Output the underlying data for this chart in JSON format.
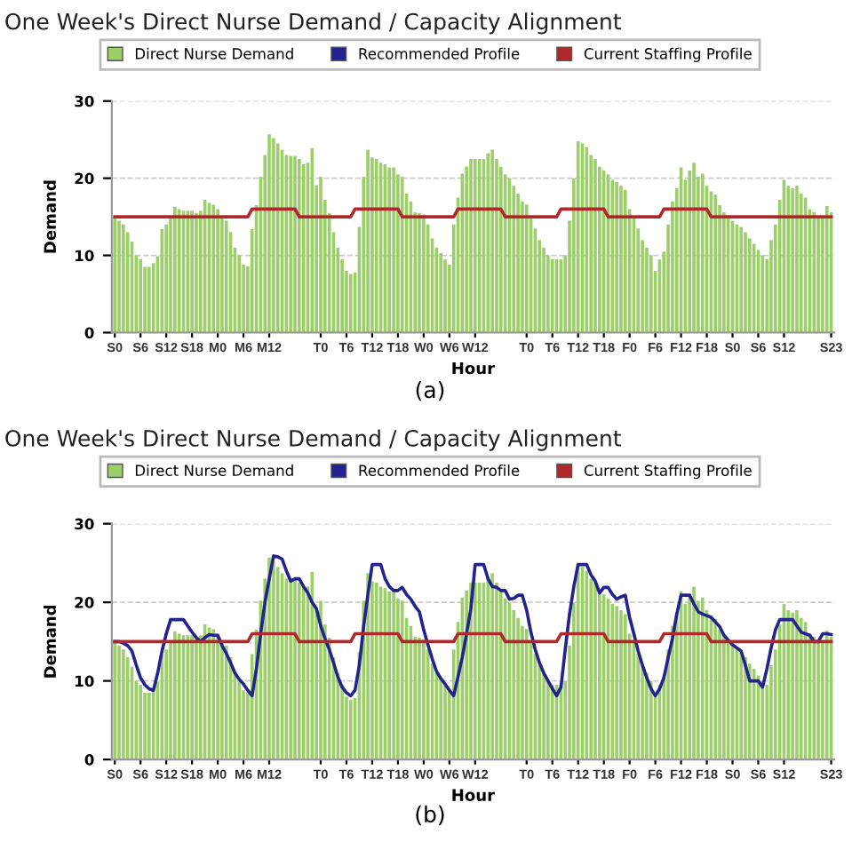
{
  "chart_data": [
    {
      "type": "bar",
      "title": "One Week's Direct Nurse Demand / Capacity Alignment",
      "xlabel": "Hour",
      "ylabel": "Demand",
      "annotations": [
        "(a)"
      ],
      "categories": [
        "S0",
        null,
        null,
        null,
        null,
        null,
        "S6",
        null,
        null,
        null,
        null,
        null,
        "S12",
        null,
        null,
        null,
        null,
        null,
        "S18",
        null,
        null,
        null,
        null,
        null,
        "M0",
        null,
        null,
        null,
        null,
        null,
        "M6",
        null,
        null,
        null,
        null,
        null,
        "M12",
        null,
        null,
        null,
        null,
        null,
        null,
        null,
        null,
        null,
        null,
        null,
        "T0",
        null,
        null,
        null,
        null,
        null,
        "T6",
        null,
        null,
        null,
        null,
        null,
        "T12",
        null,
        null,
        null,
        null,
        null,
        "T18",
        null,
        null,
        null,
        null,
        null,
        "W0",
        null,
        null,
        null,
        null,
        null,
        "W6",
        null,
        null,
        null,
        null,
        null,
        "W12",
        null,
        null,
        null,
        null,
        null,
        null,
        null,
        null,
        null,
        null,
        null,
        "T0",
        null,
        null,
        null,
        null,
        null,
        "T6",
        null,
        null,
        null,
        null,
        null,
        "T12",
        null,
        null,
        null,
        null,
        null,
        "T18",
        null,
        null,
        null,
        null,
        null,
        "F0",
        null,
        null,
        null,
        null,
        null,
        "F6",
        null,
        null,
        null,
        null,
        null,
        "F12",
        null,
        null,
        null,
        null,
        null,
        "F18",
        null,
        null,
        null,
        null,
        null,
        "S0",
        null,
        null,
        null,
        null,
        null,
        "S6",
        null,
        null,
        null,
        null,
        null,
        "S12",
        null,
        null,
        null,
        null,
        null,
        null,
        null,
        null,
        null,
        null,
        "S23"
      ],
      "series": [
        {
          "name": "Direct Nurse Demand",
          "color": "#9ccf6a",
          "values": [
            15,
            14.5,
            14,
            13,
            11.8,
            10,
            9.5,
            8.5,
            8.5,
            9,
            9.9,
            13.4,
            14,
            15,
            16.3,
            16,
            15.8,
            15.8,
            15.8,
            15.5,
            15.8,
            17.2,
            16.8,
            16.6,
            16,
            15,
            14.5,
            13,
            11,
            10,
            8.8,
            8.6,
            13.4,
            16.5,
            20.2,
            23,
            25.7,
            25.2,
            24.5,
            23.7,
            23,
            22.9,
            22.9,
            22.5,
            21.8,
            22,
            23.9,
            19.1,
            20.2,
            17.2,
            15.5,
            13,
            11,
            9.5,
            8,
            7.6,
            7.8,
            13.7,
            20.2,
            23.7,
            22.7,
            22.5,
            22,
            21.8,
            21.4,
            21.4,
            20.5,
            20.2,
            18,
            17,
            15.6,
            15.5,
            15.3,
            14,
            12.2,
            11,
            10.3,
            9.5,
            8.8,
            14,
            17.5,
            20.6,
            21.5,
            22.5,
            22.5,
            22.5,
            22.5,
            23.2,
            23.7,
            22.5,
            21.5,
            20.5,
            20,
            19,
            18,
            17,
            16.6,
            15,
            13.5,
            12,
            11,
            10,
            9.5,
            9.5,
            9.5,
            10,
            14.5,
            20,
            24.8,
            24.5,
            24,
            23,
            22.5,
            21.5,
            21,
            20.5,
            19.8,
            19.5,
            19,
            18.5,
            16,
            15,
            13.5,
            12,
            11,
            10,
            8,
            9.5,
            10.5,
            14,
            17,
            18.7,
            21.4,
            19.8,
            21,
            22,
            20.2,
            20.6,
            19,
            18.3,
            17.9,
            16.5,
            15.6,
            15,
            14.5,
            14,
            13.7,
            13,
            12.2,
            11.5,
            10.7,
            10,
            9.5,
            12,
            14,
            17.2,
            19.8,
            19,
            18.7,
            19,
            18,
            17.5,
            16,
            15.6,
            15,
            14.9,
            16.4,
            15.6
          ]
        },
        {
          "name": "Recommended Profile",
          "type": "line",
          "color": "#23238f",
          "values": [
            null,
            null,
            null,
            null,
            null,
            null,
            null,
            null,
            null,
            null,
            null,
            null,
            null,
            null,
            null,
            null,
            null,
            null,
            null,
            null,
            null,
            null,
            null,
            null,
            null,
            null,
            null,
            null,
            null,
            null,
            null,
            null,
            null,
            null,
            null,
            null,
            null,
            null,
            null,
            null,
            null,
            null,
            null,
            null,
            null,
            null,
            null,
            null,
            null,
            null,
            null,
            null,
            null,
            null,
            null,
            null,
            null,
            null,
            null,
            null,
            null,
            null,
            null,
            null,
            null,
            null,
            null,
            null,
            null,
            null,
            null,
            null,
            null,
            null,
            null,
            null,
            null,
            null,
            null,
            null,
            null,
            null,
            null,
            null,
            null,
            null,
            null,
            null,
            null,
            null,
            null,
            null,
            null,
            null,
            null,
            null,
            null,
            null,
            null,
            null,
            null,
            null,
            null,
            null,
            null,
            null,
            null,
            null,
            null,
            null,
            null,
            null,
            null,
            null,
            null,
            null,
            null,
            null,
            null,
            null,
            null,
            null,
            null,
            null,
            null,
            null,
            null,
            null,
            null,
            null,
            null,
            null,
            null,
            null,
            null,
            null,
            null,
            null,
            null,
            null,
            null,
            null,
            null,
            null,
            null,
            null,
            null,
            null,
            null,
            null,
            null,
            null,
            null,
            null,
            null,
            null,
            null,
            null,
            null,
            null,
            null,
            null,
            null,
            null,
            null,
            null,
            null,
            null
          ]
        },
        {
          "name": "Current Staffing Profile",
          "type": "line",
          "color": "#b0282a",
          "values": [
            15,
            15,
            15,
            15,
            15,
            15,
            15,
            15,
            15,
            15,
            15,
            15,
            15,
            15,
            15,
            15,
            15,
            15,
            15,
            15,
            15,
            15,
            15,
            15,
            15,
            15,
            15,
            15,
            15,
            15,
            15,
            15,
            16,
            16,
            16,
            16,
            16,
            16,
            16,
            16,
            16,
            16,
            16,
            15,
            15,
            15,
            15,
            15,
            15,
            15,
            15,
            15,
            15,
            15,
            15,
            15,
            16,
            16,
            16,
            16,
            16,
            16,
            16,
            16,
            16,
            16,
            16,
            15,
            15,
            15,
            15,
            15,
            15,
            15,
            15,
            15,
            15,
            15,
            15,
            15,
            16,
            16,
            16,
            16,
            16,
            16,
            16,
            16,
            16,
            16,
            16,
            15,
            15,
            15,
            15,
            15,
            15,
            15,
            15,
            15,
            15,
            15,
            15,
            15,
            16,
            16,
            16,
            16,
            16,
            16,
            16,
            16,
            16,
            16,
            16,
            15,
            15,
            15,
            15,
            15,
            15,
            15,
            15,
            15,
            15,
            15,
            15,
            15,
            16,
            16,
            16,
            16,
            16,
            16,
            16,
            16,
            16,
            16,
            16,
            15,
            15,
            15,
            15,
            15,
            15,
            15,
            15,
            15,
            15,
            15,
            15,
            15,
            15,
            15,
            15,
            15,
            15,
            15,
            15,
            15,
            15,
            15,
            15,
            15,
            15,
            15,
            15,
            15
          ]
        }
      ],
      "ylim": [
        0,
        30
      ],
      "yticks": [
        0,
        10,
        20,
        30
      ],
      "grid": "y",
      "legend": "top"
    },
    {
      "type": "bar",
      "title": "One Week's Direct Nurse Demand / Capacity Alignment",
      "xlabel": "Hour",
      "ylabel": "Demand",
      "annotations": [
        "(b)"
      ],
      "categories": [
        "S0",
        null,
        null,
        null,
        null,
        null,
        "S6",
        null,
        null,
        null,
        null,
        null,
        "S12",
        null,
        null,
        null,
        null,
        null,
        "S18",
        null,
        null,
        null,
        null,
        null,
        "M0",
        null,
        null,
        null,
        null,
        null,
        "M6",
        null,
        null,
        null,
        null,
        null,
        "M12",
        null,
        null,
        null,
        null,
        null,
        null,
        null,
        null,
        null,
        null,
        null,
        "T0",
        null,
        null,
        null,
        null,
        null,
        "T6",
        null,
        null,
        null,
        null,
        null,
        "T12",
        null,
        null,
        null,
        null,
        null,
        "T18",
        null,
        null,
        null,
        null,
        null,
        "W0",
        null,
        null,
        null,
        null,
        null,
        "W6",
        null,
        null,
        null,
        null,
        null,
        "W12",
        null,
        null,
        null,
        null,
        null,
        null,
        null,
        null,
        null,
        null,
        null,
        "T0",
        null,
        null,
        null,
        null,
        null,
        "T6",
        null,
        null,
        null,
        null,
        null,
        "T12",
        null,
        null,
        null,
        null,
        null,
        "T18",
        null,
        null,
        null,
        null,
        null,
        "F0",
        null,
        null,
        null,
        null,
        null,
        "F6",
        null,
        null,
        null,
        null,
        null,
        "F12",
        null,
        null,
        null,
        null,
        null,
        "F18",
        null,
        null,
        null,
        null,
        null,
        "S0",
        null,
        null,
        null,
        null,
        null,
        "S6",
        null,
        null,
        null,
        null,
        null,
        "S12",
        null,
        null,
        null,
        null,
        null,
        null,
        null,
        null,
        null,
        null,
        "S23"
      ],
      "series": [
        {
          "name": "Direct Nurse Demand",
          "color": "#9ccf6a",
          "values": [
            15,
            14.5,
            14,
            13,
            11.8,
            10,
            9.5,
            8.5,
            8.5,
            9,
            9.9,
            13.4,
            14,
            15,
            16.3,
            16,
            15.8,
            15.8,
            15.8,
            15.5,
            15.8,
            17.2,
            16.8,
            16.6,
            16,
            15,
            14.5,
            13,
            11,
            10,
            8.8,
            8.6,
            13.4,
            16.5,
            20.2,
            23,
            25.7,
            25.2,
            24.5,
            23.7,
            23,
            22.9,
            22.9,
            22.5,
            21.8,
            22,
            23.9,
            19.1,
            20.2,
            17.2,
            15.5,
            13,
            11,
            9.5,
            8,
            7.6,
            7.8,
            13.7,
            20.2,
            23.7,
            22.7,
            22.5,
            22,
            21.8,
            21.4,
            21.4,
            20.5,
            20.2,
            18,
            17,
            15.6,
            15.5,
            15.3,
            14,
            12.2,
            11,
            10.3,
            9.5,
            8.8,
            14,
            17.5,
            20.6,
            21.5,
            22.5,
            22.5,
            22.5,
            22.5,
            23.2,
            23.7,
            22.5,
            21.5,
            20.5,
            20,
            19,
            18,
            17,
            16.6,
            15,
            13.5,
            12,
            11,
            10,
            9.5,
            9.5,
            9.5,
            10,
            14.5,
            20,
            24.8,
            24.5,
            24,
            23,
            22.5,
            21.5,
            21,
            20.5,
            19.8,
            19.5,
            19,
            18.5,
            16,
            15,
            13.5,
            12,
            11,
            10,
            8,
            9.5,
            10.5,
            14,
            17,
            18.7,
            21.4,
            19.8,
            21,
            22,
            20.2,
            20.6,
            19,
            18.3,
            17.9,
            16.5,
            15.6,
            15,
            14.5,
            14,
            13.7,
            13,
            12.2,
            11.5,
            10.7,
            10,
            9.5,
            12,
            14,
            17.2,
            19.8,
            19,
            18.7,
            19,
            18,
            17.5,
            16,
            15.6,
            15,
            14.9,
            16.4,
            15.6
          ]
        },
        {
          "name": "Recommended Profile",
          "type": "line",
          "color": "#23238f",
          "values": [
            15,
            15,
            14.8,
            14.5,
            13.8,
            12,
            10.4,
            9.5,
            9,
            8.8,
            11,
            13.8,
            16,
            17.8,
            17.8,
            17.8,
            17.8,
            17,
            16.2,
            15.5,
            15,
            15.5,
            15.9,
            15.8,
            15.8,
            14.5,
            13.5,
            12.3,
            11,
            10.2,
            9.6,
            8.8,
            8.1,
            11.5,
            16,
            20,
            23,
            25.9,
            25.8,
            25.5,
            24,
            22.7,
            23,
            23,
            22,
            21.2,
            20,
            19.2,
            17,
            15.4,
            14,
            12.3,
            10.5,
            9.2,
            8.5,
            8.1,
            8.8,
            12,
            16.9,
            21,
            24.8,
            24.8,
            24.8,
            23,
            22,
            21.5,
            21.5,
            21.9,
            21,
            20.4,
            19.5,
            18.8,
            16.5,
            14.6,
            12.8,
            11.2,
            10.3,
            9.6,
            8.8,
            8.1,
            10.5,
            13,
            16,
            19.2,
            24.8,
            24.8,
            24.8,
            23,
            22,
            21.9,
            21.5,
            21.5,
            20.4,
            20.5,
            20.9,
            20.9,
            19,
            16.2,
            14,
            12.3,
            11,
            10,
            9,
            8.1,
            9.2,
            14,
            18.5,
            22,
            24.8,
            24.8,
            24.8,
            23.5,
            22.7,
            21.2,
            21.9,
            21.9,
            21,
            20.4,
            20.7,
            20.9,
            18.1,
            16,
            13.8,
            12,
            10.4,
            9,
            8.1,
            9,
            10.4,
            13,
            15.4,
            18.5,
            20.9,
            20.9,
            20.9,
            19.8,
            18.8,
            18.5,
            18.3,
            18.1,
            17.5,
            16.9,
            15.8,
            15.2,
            14.6,
            14.2,
            13.8,
            12,
            10,
            10,
            10,
            9.2,
            11.5,
            14.2,
            16.5,
            17.8,
            17.8,
            17.8,
            17.8,
            17,
            16.2,
            16,
            15.8,
            15,
            15,
            16,
            16,
            15.9
          ]
        },
        {
          "name": "Current Staffing Profile",
          "type": "line",
          "color": "#b0282a",
          "values": [
            15,
            15,
            15,
            15,
            15,
            15,
            15,
            15,
            15,
            15,
            15,
            15,
            15,
            15,
            15,
            15,
            15,
            15,
            15,
            15,
            15,
            15,
            15,
            15,
            15,
            15,
            15,
            15,
            15,
            15,
            15,
            15,
            16,
            16,
            16,
            16,
            16,
            16,
            16,
            16,
            16,
            16,
            16,
            15,
            15,
            15,
            15,
            15,
            15,
            15,
            15,
            15,
            15,
            15,
            15,
            15,
            16,
            16,
            16,
            16,
            16,
            16,
            16,
            16,
            16,
            16,
            16,
            15,
            15,
            15,
            15,
            15,
            15,
            15,
            15,
            15,
            15,
            15,
            15,
            15,
            16,
            16,
            16,
            16,
            16,
            16,
            16,
            16,
            16,
            16,
            16,
            15,
            15,
            15,
            15,
            15,
            15,
            15,
            15,
            15,
            15,
            15,
            15,
            15,
            16,
            16,
            16,
            16,
            16,
            16,
            16,
            16,
            16,
            16,
            16,
            15,
            15,
            15,
            15,
            15,
            15,
            15,
            15,
            15,
            15,
            15,
            15,
            15,
            16,
            16,
            16,
            16,
            16,
            16,
            16,
            16,
            16,
            16,
            16,
            15,
            15,
            15,
            15,
            15,
            15,
            15,
            15,
            15,
            15,
            15,
            15,
            15,
            15,
            15,
            15,
            15,
            15,
            15,
            15,
            15,
            15,
            15,
            15,
            15,
            15,
            15,
            15,
            15
          ]
        }
      ],
      "ylim": [
        0,
        30
      ],
      "yticks": [
        0,
        10,
        20,
        30
      ],
      "grid": "y",
      "legend": "top"
    }
  ]
}
